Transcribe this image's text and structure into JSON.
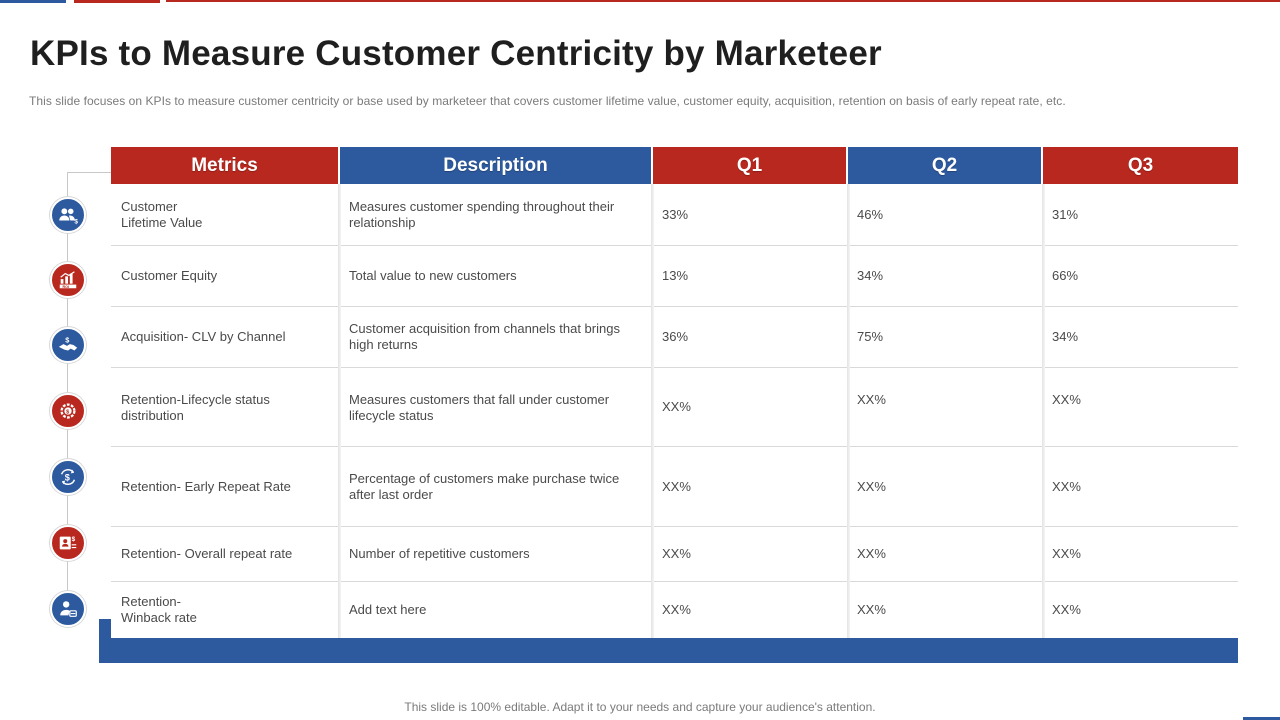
{
  "slide": {
    "title": "KPIs to Measure Customer Centricity by Marketeer",
    "subtitle": "This slide focuses on KPIs to measure customer centricity or base used by marketeer that covers customer lifetime value,  customer equity, acquisition, retention on basis of early repeat rate, etc.",
    "footer": "This slide is 100% editable. Adapt it to your needs and capture your audience's attention."
  },
  "colors": {
    "red": "#b8281f",
    "blue": "#2d5a9e"
  },
  "table": {
    "headers": {
      "metrics": "Metrics",
      "description": "Description",
      "q1": "Q1",
      "q2": "Q2",
      "q3": "Q3"
    },
    "rows": [
      {
        "icon": "customer-value-icon",
        "metric": "Customer\nLifetime Value",
        "description": "Measures customer spending throughout their relationship",
        "q1": "33%",
        "q2": "46%",
        "q3": "31%"
      },
      {
        "icon": "roi-chart-icon",
        "metric": "Customer Equity",
        "description": "Total value  to new customers",
        "q1": "13%",
        "q2": "34%",
        "q3": "66%"
      },
      {
        "icon": "handshake-dollar-icon",
        "metric": "Acquisition- CLV by Channel",
        "description": "Customer acquisition from channels that brings high returns",
        "q1": "36%",
        "q2": "75%",
        "q3": "34%"
      },
      {
        "icon": "lifecycle-gear-icon",
        "metric": "Retention-Lifecycle status distribution",
        "description": "Measures customers that fall under customer lifecycle status",
        "q1": "XX%",
        "q2": "XX%",
        "q3": "XX%"
      },
      {
        "icon": "dollar-cycle-icon",
        "metric": "Retention- Early Repeat Rate",
        "description": "Percentage of customers make purchase twice after last order",
        "q1": "XX%",
        "q2": "XX%",
        "q3": "XX%"
      },
      {
        "icon": "repeat-customer-icon",
        "metric": "Retention- Overall  repeat rate",
        "description": "Number  of repetitive customers",
        "q1": "XX%",
        "q2": "XX%",
        "q3": "XX%"
      },
      {
        "icon": "winback-user-icon",
        "metric": "Retention-\nWinback rate",
        "description": "Add text here",
        "q1": "XX%",
        "q2": "XX%",
        "q3": "XX%"
      }
    ]
  }
}
